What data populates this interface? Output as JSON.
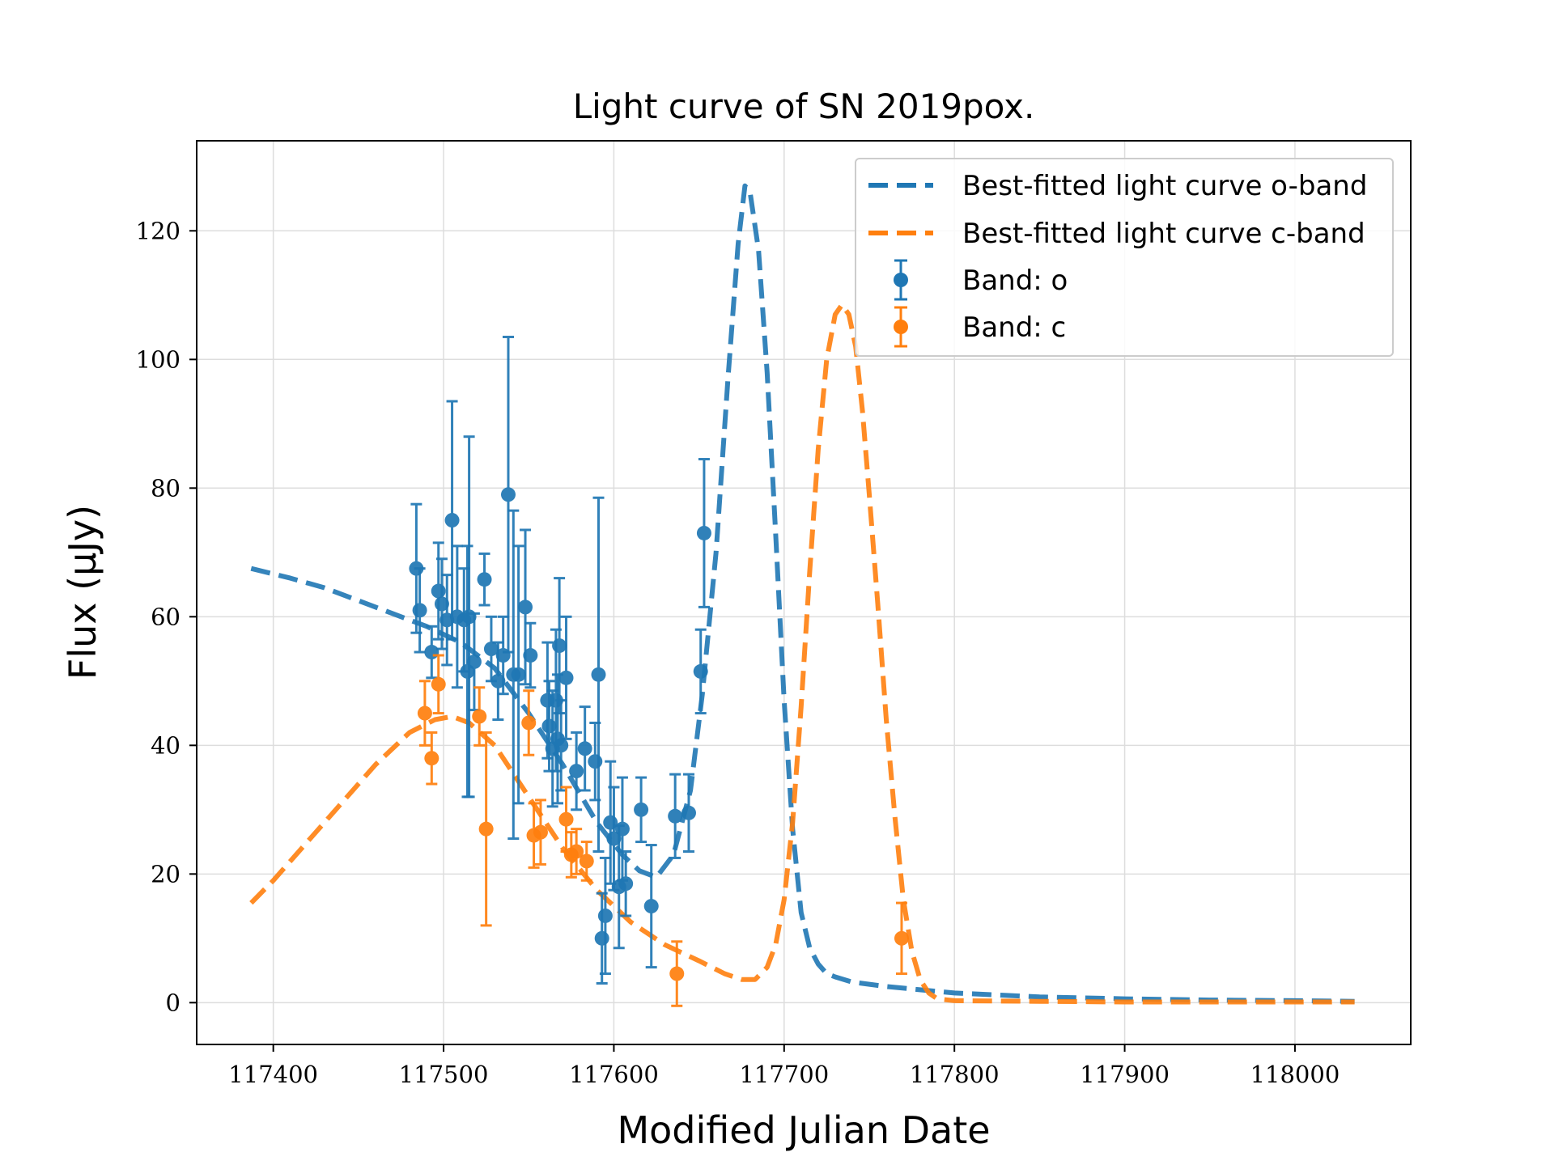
{
  "chart_data": {
    "type": "scatter",
    "title": "Light curve of SN 2019pox.",
    "xlabel": "Modified Julian Date",
    "ylabel": "Flux (μJy)",
    "xlim": [
      117355,
      118068
    ],
    "ylim": [
      -6.5,
      134
    ],
    "xticks": [
      117400,
      117500,
      117600,
      117700,
      117800,
      117900,
      118000
    ],
    "xtick_labels": [
      "117400",
      "117500",
      "117600",
      "117700",
      "117800",
      "117900",
      "118000"
    ],
    "yticks": [
      0,
      20,
      40,
      60,
      80,
      100,
      120
    ],
    "ytick_labels": [
      "0",
      "20",
      "40",
      "60",
      "80",
      "100",
      "120"
    ],
    "grid": true,
    "legend_position": "top-right",
    "colors": {
      "o": "#1f77b4",
      "c": "#ff7f0e"
    },
    "series": [
      {
        "name": "Best-fitted light curve o-band",
        "kind": "dashed-line",
        "color": "#1f77b4",
        "x": [
          117387,
          117410,
          117430,
          117450,
          117470,
          117490,
          117510,
          117530,
          117550,
          117570,
          117590,
          117605,
          117615,
          117625,
          117635,
          117645,
          117652,
          117660,
          117667,
          117673,
          117677,
          117680,
          117685,
          117690,
          117695,
          117700,
          117705,
          117710,
          117715,
          117720,
          117725,
          117730,
          117740,
          117760,
          117800,
          117850,
          117900,
          117950,
          118000,
          118035
        ],
        "y": [
          67.5,
          66.0,
          64.5,
          62.5,
          60.5,
          58.5,
          56.0,
          52.0,
          45.0,
          37.0,
          28.0,
          23.0,
          20.5,
          19.5,
          23.0,
          33.0,
          48.0,
          70.0,
          97.0,
          118.0,
          127.0,
          126.0,
          117.0,
          98.0,
          73.0,
          47.0,
          27.0,
          14.0,
          8.5,
          6.0,
          4.5,
          4.0,
          3.2,
          2.5,
          1.5,
          0.9,
          0.6,
          0.4,
          0.3,
          0.2
        ]
      },
      {
        "name": "Best-fitted light curve c-band",
        "kind": "dashed-line",
        "color": "#ff7f0e",
        "x": [
          117387,
          117400,
          117420,
          117440,
          117460,
          117480,
          117495,
          117505,
          117515,
          117530,
          117550,
          117570,
          117590,
          117610,
          117630,
          117650,
          117665,
          117675,
          117683,
          117690,
          117695,
          117700,
          117705,
          117710,
          117715,
          117720,
          117725,
          117730,
          117734,
          117738,
          117742,
          117746,
          117750,
          117755,
          117760,
          117765,
          117770,
          117775,
          117780,
          117785,
          117790,
          117800,
          117850,
          117900,
          117950,
          118000,
          118035
        ],
        "y": [
          15.5,
          19.0,
          25.0,
          31.0,
          37.0,
          42.0,
          44.0,
          44.5,
          43.5,
          40.0,
          32.0,
          24.0,
          17.5,
          12.5,
          9.0,
          6.5,
          4.5,
          3.6,
          3.6,
          5.5,
          9.0,
          16.0,
          28.0,
          46.0,
          67.0,
          86.0,
          100.0,
          107.0,
          108.5,
          107.0,
          102.0,
          92.0,
          79.0,
          62.0,
          44.0,
          29.0,
          16.0,
          8.0,
          3.5,
          1.5,
          0.6,
          0.3,
          0.2,
          0.1,
          0.1,
          0.1,
          0.1
        ]
      },
      {
        "name": "Band: o",
        "kind": "errorbar",
        "color": "#1f77b4",
        "x": [
          117484,
          117486,
          117493,
          117497,
          117499,
          117502,
          117505,
          117508,
          117512,
          117514,
          117515,
          117518,
          117524,
          117528,
          117532,
          117535,
          117538,
          117541,
          117544,
          117548,
          117551,
          117561,
          117562,
          117564,
          117566,
          117567,
          117568,
          117569,
          117572,
          117578,
          117583,
          117589,
          117591,
          117593,
          117595,
          117598,
          117600,
          117603,
          117605,
          117607,
          117616,
          117622,
          117636,
          117644,
          117651,
          117653
        ],
        "y": [
          67.5,
          61.0,
          54.5,
          64.0,
          62.0,
          59.5,
          75.0,
          60.0,
          59.5,
          51.5,
          60.0,
          53.0,
          65.8,
          55.0,
          50.0,
          54.0,
          79.0,
          51.0,
          51.0,
          61.5,
          54.0,
          47.0,
          43.0,
          39.5,
          47.0,
          41.0,
          55.5,
          40.0,
          50.5,
          36.0,
          39.5,
          37.5,
          51.0,
          10.0,
          13.5,
          28.0,
          25.5,
          18.0,
          27.0,
          18.5,
          30.0,
          15.0,
          29.0,
          29.5,
          51.5,
          73.0
        ],
        "err": [
          10,
          6.5,
          4,
          7.5,
          7,
          7,
          18.5,
          11,
          8,
          19.5,
          28,
          7.5,
          4,
          5,
          6,
          6,
          24.5,
          25.5,
          20,
          12,
          5,
          9,
          7,
          9,
          11,
          10,
          10.5,
          7,
          9.5,
          6,
          6.5,
          6,
          27.5,
          7,
          9,
          9.5,
          8,
          9.5,
          8,
          5,
          5,
          9.5,
          6.5,
          6,
          6.5,
          11.5
        ]
      },
      {
        "name": "Band: c",
        "kind": "errorbar",
        "color": "#ff7f0e",
        "x": [
          117489,
          117493,
          117497,
          117521,
          117525,
          117550,
          117553,
          117557,
          117572,
          117575,
          117578,
          117584,
          117637,
          117769
        ],
        "y": [
          45.0,
          38.0,
          49.5,
          44.5,
          27.0,
          43.5,
          26.0,
          26.5,
          28.5,
          23.0,
          23.5,
          22.0,
          4.5,
          10.0
        ],
        "err": [
          5,
          4,
          4.5,
          4.5,
          15,
          5,
          5,
          5,
          5,
          3.5,
          3.5,
          3,
          5,
          5.5
        ]
      }
    ]
  }
}
